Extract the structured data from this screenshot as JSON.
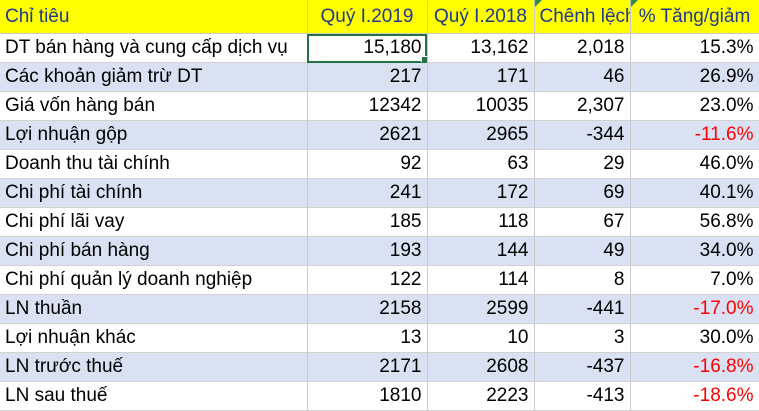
{
  "headers": [
    "Chỉ tiêu",
    "Quý I.2019",
    "Quý I.2018",
    "Chênh lệch",
    "% Tăng/giảm"
  ],
  "rows": [
    {
      "label": "DT bán hàng và cung cấp dịch vụ",
      "q2019": "15,180",
      "q2018": "13,162",
      "diff": "2,018",
      "pct": "15.3%",
      "negative": false
    },
    {
      "label": "Các khoản giảm trừ DT",
      "q2019": "217",
      "q2018": "171",
      "diff": "46",
      "pct": "26.9%",
      "negative": false
    },
    {
      "label": "Giá vốn hàng bán",
      "q2019": "12342",
      "q2018": "10035",
      "diff": "2,307",
      "pct": "23.0%",
      "negative": false
    },
    {
      "label": "Lợi nhuận gộp",
      "q2019": "2621",
      "q2018": "2965",
      "diff": "-344",
      "pct": "-11.6%",
      "negative": true
    },
    {
      "label": "Doanh thu tài chính",
      "q2019": "92",
      "q2018": "63",
      "diff": "29",
      "pct": "46.0%",
      "negative": false
    },
    {
      "label": "Chi phí tài chính",
      "q2019": "241",
      "q2018": "172",
      "diff": "69",
      "pct": "40.1%",
      "negative": false
    },
    {
      "label": "Chi phí lãi vay",
      "q2019": "185",
      "q2018": "118",
      "diff": "67",
      "pct": "56.8%",
      "negative": false
    },
    {
      "label": "Chi phí bán hàng",
      "q2019": "193",
      "q2018": "144",
      "diff": "49",
      "pct": "34.0%",
      "negative": false
    },
    {
      "label": "Chi phí quản lý doanh nghiệp",
      "q2019": "122",
      "q2018": "114",
      "diff": "8",
      "pct": "7.0%",
      "negative": false
    },
    {
      "label": "LN thuần",
      "q2019": "2158",
      "q2018": "2599",
      "diff": "-441",
      "pct": "-17.0%",
      "negative": true
    },
    {
      "label": "Lợi nhuận khác",
      "q2019": "13",
      "q2018": "10",
      "diff": "3",
      "pct": "30.0%",
      "negative": false
    },
    {
      "label": "LN trước thuế",
      "q2019": "2171",
      "q2018": "2608",
      "diff": "-437",
      "pct": "-16.8%",
      "negative": true
    },
    {
      "label": "LN sau thuế",
      "q2019": "1810",
      "q2018": "2223",
      "diff": "-413",
      "pct": "-18.6%",
      "negative": true
    }
  ],
  "colors": {
    "header_bg": "#ffff00",
    "header_text": "#1f3a8a",
    "band_bg": "#d9e1f2",
    "negative_text": "#ff0000",
    "selection": "#217346"
  },
  "selected_cell": "row 1, Quý I.2019"
}
